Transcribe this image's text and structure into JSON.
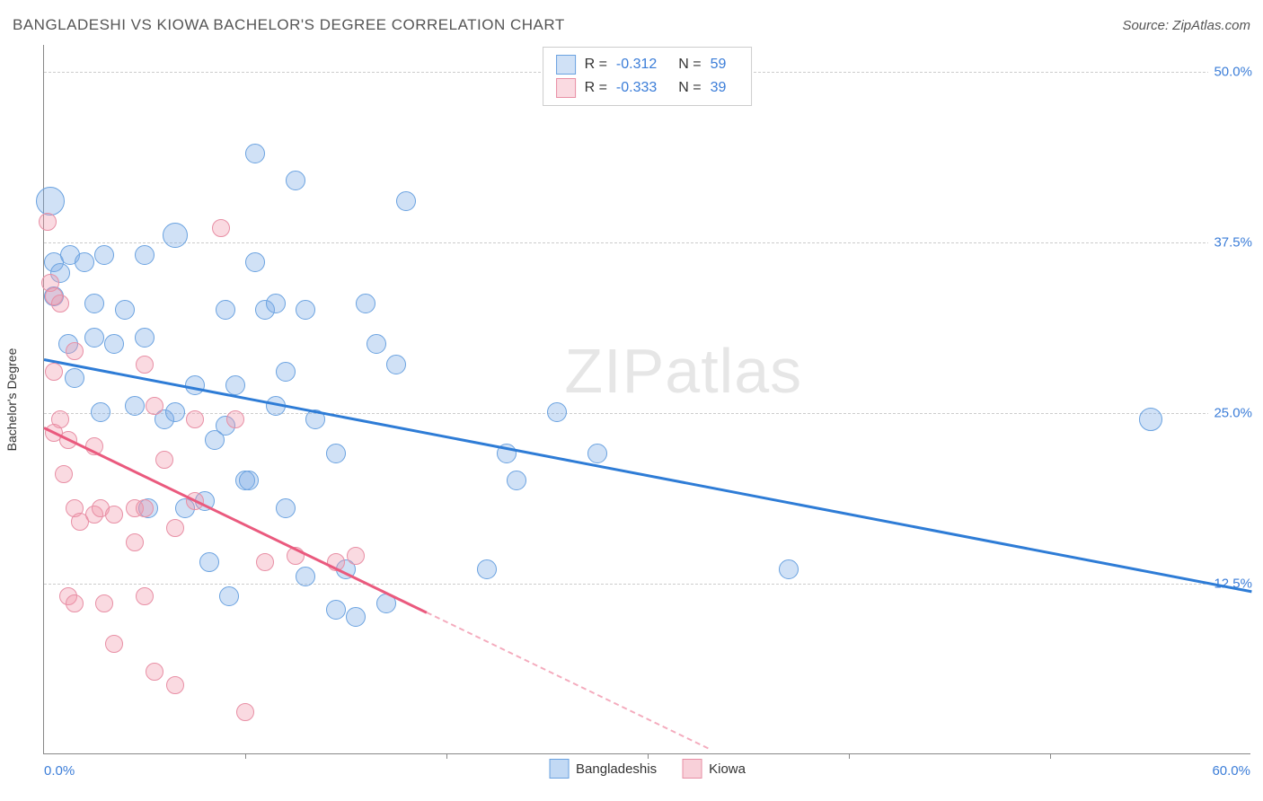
{
  "header": {
    "title": "BANGLADESHI VS KIOWA BACHELOR'S DEGREE CORRELATION CHART",
    "source": "Source: ZipAtlas.com"
  },
  "watermark": {
    "prefix": "ZIP",
    "suffix": "atlas"
  },
  "chart": {
    "type": "scatter",
    "xlim": [
      0,
      60
    ],
    "ylim": [
      0,
      52
    ],
    "yaxis_title": "Bachelor's Degree",
    "yticks": [
      {
        "value": 12.5,
        "label": "12.5%"
      },
      {
        "value": 25.0,
        "label": "25.0%"
      },
      {
        "value": 37.5,
        "label": "37.5%"
      },
      {
        "value": 50.0,
        "label": "50.0%"
      }
    ],
    "xtick_step": 10,
    "xaxis_label_min": "0.0%",
    "xaxis_label_max": "60.0%",
    "grid_color": "#cccccc",
    "background_color": "#ffffff",
    "series": [
      {
        "name": "Bangladeshis",
        "fill": "rgba(120,170,230,0.35)",
        "stroke": "#6aa2e0",
        "line_color": "#2e7cd6",
        "marker_radius": 11,
        "r_value": "-0.312",
        "n_value": "59",
        "trend": {
          "x1": 0,
          "y1": 29.0,
          "x2": 60,
          "y2": 12.0,
          "solid_until_x": 60
        },
        "points": [
          {
            "x": 0.3,
            "y": 40.5,
            "r": 16
          },
          {
            "x": 0.5,
            "y": 36.0
          },
          {
            "x": 0.8,
            "y": 35.2
          },
          {
            "x": 0.5,
            "y": 33.5
          },
          {
            "x": 1.2,
            "y": 30.0
          },
          {
            "x": 1.3,
            "y": 36.5
          },
          {
            "x": 2.0,
            "y": 36.0
          },
          {
            "x": 2.5,
            "y": 33.0
          },
          {
            "x": 1.5,
            "y": 27.5
          },
          {
            "x": 2.5,
            "y": 30.5
          },
          {
            "x": 3.0,
            "y": 36.5
          },
          {
            "x": 3.5,
            "y": 30.0
          },
          {
            "x": 2.8,
            "y": 25.0
          },
          {
            "x": 4.0,
            "y": 32.5
          },
          {
            "x": 4.5,
            "y": 25.5
          },
          {
            "x": 5.0,
            "y": 30.5
          },
          {
            "x": 5.0,
            "y": 36.5
          },
          {
            "x": 5.2,
            "y": 18.0
          },
          {
            "x": 6.0,
            "y": 24.5
          },
          {
            "x": 6.5,
            "y": 25.0
          },
          {
            "x": 6.5,
            "y": 38.0,
            "r": 14
          },
          {
            "x": 7.0,
            "y": 18.0
          },
          {
            "x": 7.5,
            "y": 27.0
          },
          {
            "x": 8.0,
            "y": 18.5
          },
          {
            "x": 8.2,
            "y": 14.0
          },
          {
            "x": 8.5,
            "y": 23.0
          },
          {
            "x": 9.0,
            "y": 32.5
          },
          {
            "x": 9.0,
            "y": 24.0
          },
          {
            "x": 9.2,
            "y": 11.5
          },
          {
            "x": 9.5,
            "y": 27.0
          },
          {
            "x": 10.0,
            "y": 20.0
          },
          {
            "x": 10.2,
            "y": 20.0
          },
          {
            "x": 10.5,
            "y": 36.0
          },
          {
            "x": 10.5,
            "y": 44.0
          },
          {
            "x": 11.0,
            "y": 32.5
          },
          {
            "x": 11.5,
            "y": 25.5
          },
          {
            "x": 11.5,
            "y": 33.0
          },
          {
            "x": 12.0,
            "y": 28.0
          },
          {
            "x": 12.0,
            "y": 18.0
          },
          {
            "x": 12.5,
            "y": 42.0
          },
          {
            "x": 13.0,
            "y": 13.0
          },
          {
            "x": 13.0,
            "y": 32.5
          },
          {
            "x": 13.5,
            "y": 24.5
          },
          {
            "x": 14.5,
            "y": 22.0
          },
          {
            "x": 14.5,
            "y": 10.5
          },
          {
            "x": 15.0,
            "y": 13.5
          },
          {
            "x": 15.5,
            "y": 10.0
          },
          {
            "x": 16.0,
            "y": 33.0
          },
          {
            "x": 16.5,
            "y": 30.0
          },
          {
            "x": 17.0,
            "y": 11.0
          },
          {
            "x": 17.5,
            "y": 28.5
          },
          {
            "x": 18.0,
            "y": 40.5
          },
          {
            "x": 22.0,
            "y": 13.5
          },
          {
            "x": 23.0,
            "y": 22.0
          },
          {
            "x": 23.5,
            "y": 20.0
          },
          {
            "x": 25.5,
            "y": 25.0
          },
          {
            "x": 27.5,
            "y": 22.0
          },
          {
            "x": 37.0,
            "y": 13.5
          },
          {
            "x": 55.0,
            "y": 24.5,
            "r": 13
          }
        ]
      },
      {
        "name": "Kiowa",
        "fill": "rgba(240,150,170,0.35)",
        "stroke": "#e88fa5",
        "line_color": "#ea5a7e",
        "marker_radius": 10,
        "r_value": "-0.333",
        "n_value": "39",
        "trend": {
          "x1": 0,
          "y1": 24.0,
          "x2": 33,
          "y2": 0.5,
          "solid_until_x": 19
        },
        "points": [
          {
            "x": 0.2,
            "y": 39.0
          },
          {
            "x": 0.3,
            "y": 34.5
          },
          {
            "x": 0.5,
            "y": 33.5
          },
          {
            "x": 0.8,
            "y": 33.0
          },
          {
            "x": 0.5,
            "y": 28.0
          },
          {
            "x": 0.8,
            "y": 24.5
          },
          {
            "x": 0.5,
            "y": 23.5
          },
          {
            "x": 1.2,
            "y": 23.0
          },
          {
            "x": 1.0,
            "y": 20.5
          },
          {
            "x": 1.5,
            "y": 18.0
          },
          {
            "x": 1.5,
            "y": 29.5
          },
          {
            "x": 1.8,
            "y": 17.0
          },
          {
            "x": 1.2,
            "y": 11.5
          },
          {
            "x": 1.5,
            "y": 11.0
          },
          {
            "x": 2.5,
            "y": 17.5
          },
          {
            "x": 2.8,
            "y": 18.0
          },
          {
            "x": 2.5,
            "y": 22.5
          },
          {
            "x": 3.5,
            "y": 17.5
          },
          {
            "x": 3.0,
            "y": 11.0
          },
          {
            "x": 3.5,
            "y": 8.0
          },
          {
            "x": 4.5,
            "y": 15.5
          },
          {
            "x": 4.5,
            "y": 18.0
          },
          {
            "x": 5.0,
            "y": 28.5
          },
          {
            "x": 5.0,
            "y": 18.0
          },
          {
            "x": 5.0,
            "y": 11.5
          },
          {
            "x": 5.5,
            "y": 25.5
          },
          {
            "x": 5.5,
            "y": 6.0
          },
          {
            "x": 6.0,
            "y": 21.5
          },
          {
            "x": 6.5,
            "y": 16.5
          },
          {
            "x": 6.5,
            "y": 5.0
          },
          {
            "x": 7.5,
            "y": 24.5
          },
          {
            "x": 7.5,
            "y": 18.5
          },
          {
            "x": 8.8,
            "y": 38.5
          },
          {
            "x": 9.5,
            "y": 24.5
          },
          {
            "x": 10.0,
            "y": 3.0
          },
          {
            "x": 11.0,
            "y": 14.0
          },
          {
            "x": 12.5,
            "y": 14.5
          },
          {
            "x": 14.5,
            "y": 14.0
          },
          {
            "x": 15.5,
            "y": 14.5
          }
        ]
      }
    ],
    "legend_top_labels": {
      "r_prefix": "R  =",
      "n_prefix": "N  ="
    },
    "legend_bottom": [
      {
        "label": "Bangladeshis",
        "fill": "rgba(120,170,230,0.45)",
        "stroke": "#6aa2e0"
      },
      {
        "label": "Kiowa",
        "fill": "rgba(240,150,170,0.45)",
        "stroke": "#e88fa5"
      }
    ]
  }
}
